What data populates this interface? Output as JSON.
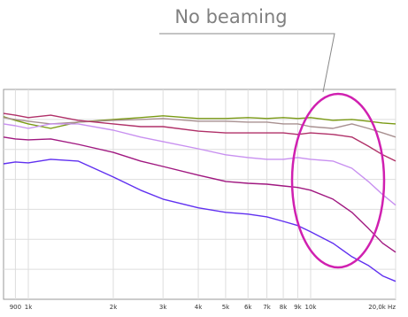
{
  "chart_data": {
    "type": "line",
    "annotation": "No beaming",
    "x": [
      817,
      900,
      1000,
      1200,
      1500,
      2000,
      2500,
      3000,
      4000,
      5000,
      6000,
      7000,
      8000,
      9000,
      10000,
      12000,
      14000,
      16000,
      18000,
      20000
    ],
    "log_x": true,
    "grid": true,
    "xlim": [
      817,
      20000
    ],
    "xticks": [
      900,
      {
        "value": 1000,
        "label": "1k"
      },
      {
        "value": 2000,
        "label": "2k"
      },
      {
        "value": 3000,
        "label": "3k"
      },
      {
        "value": 4000,
        "label": "4k"
      },
      {
        "value": 5000,
        "label": "5k"
      },
      {
        "value": 6000,
        "label": "6k"
      },
      {
        "value": 7000,
        "label": "7k"
      },
      {
        "value": 8000,
        "label": "8k"
      },
      {
        "value": 9000,
        "label": "9k"
      },
      {
        "value": 10000,
        "label": "10k"
      },
      {
        "value": 20000,
        "label": "20,0k Hz"
      }
    ],
    "ylim": [
      -70,
      0
    ],
    "yticks": [
      -60,
      -50,
      -40,
      -30,
      -20,
      -10
    ],
    "series": [
      {
        "color": "#7a9a14",
        "values": [
          -9.1,
          -10.3,
          -11.5,
          -13.0,
          -10.9,
          -10.0,
          -9.4,
          -8.8,
          -9.7,
          -9.7,
          -9.4,
          -9.7,
          -9.4,
          -9.7,
          -9.4,
          -10.3,
          -10.0,
          -10.6,
          -11.2,
          -11.5
        ]
      },
      {
        "color": "#a89090",
        "values": [
          -9.4,
          -10.0,
          -10.6,
          -11.5,
          -10.9,
          -10.3,
          -10.0,
          -9.7,
          -10.6,
          -10.6,
          -10.9,
          -10.9,
          -11.5,
          -11.5,
          -12.4,
          -13.0,
          -11.5,
          -13.0,
          -14.5,
          -15.9
        ]
      },
      {
        "color": "#b03068",
        "values": [
          -8.0,
          -8.6,
          -9.4,
          -8.6,
          -10.3,
          -11.5,
          -12.4,
          -12.4,
          -13.9,
          -14.5,
          -14.5,
          -14.5,
          -14.5,
          -15.0,
          -14.5,
          -15.0,
          -15.9,
          -18.9,
          -21.8,
          -23.9
        ]
      },
      {
        "color": "#c890f0",
        "values": [
          -11.5,
          -12.1,
          -13.0,
          -11.5,
          -11.5,
          -13.6,
          -15.9,
          -17.4,
          -19.8,
          -21.8,
          -22.7,
          -23.3,
          -23.3,
          -22.7,
          -23.3,
          -23.9,
          -26.3,
          -30.7,
          -35.1,
          -38.6
        ]
      },
      {
        "color": "#a01880",
        "values": [
          -15.9,
          -16.5,
          -16.8,
          -16.5,
          -18.3,
          -21.0,
          -23.9,
          -25.7,
          -28.6,
          -30.7,
          -31.3,
          -31.6,
          -32.2,
          -32.7,
          -33.6,
          -36.6,
          -41.0,
          -46.3,
          -51.3,
          -54.3
        ]
      },
      {
        "color": "#6030f0",
        "values": [
          -24.8,
          -24.2,
          -24.5,
          -23.3,
          -23.9,
          -29.2,
          -33.6,
          -36.6,
          -39.5,
          -41.0,
          -41.6,
          -42.5,
          -44.0,
          -45.4,
          -47.5,
          -51.3,
          -55.8,
          -58.7,
          -62.2,
          -64.0
        ]
      }
    ]
  }
}
